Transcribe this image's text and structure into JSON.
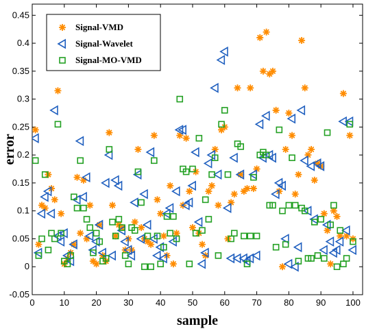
{
  "chart_data": {
    "type": "scatter",
    "xlabel": "sample",
    "ylabel": "error",
    "xlim": [
      0,
      103
    ],
    "ylim": [
      -0.05,
      0.47
    ],
    "xticks": [
      0,
      10,
      20,
      30,
      40,
      50,
      60,
      70,
      80,
      90,
      100
    ],
    "yticks": [
      -0.05,
      0,
      0.05,
      0.1,
      0.15,
      0.2,
      0.25,
      0.3,
      0.35,
      0.4,
      0.45
    ],
    "ytick_labels": [
      "-0.05",
      "0",
      "0.05",
      "0.1",
      "0.15",
      "0.2",
      "0.25",
      "0.3",
      "0.35",
      "0.4",
      "0.45"
    ],
    "grid": false,
    "legend_position": "top-left",
    "series": [
      {
        "name": "Signal-VMD",
        "marker": "star",
        "color": "#ff8c00",
        "points": [
          [
            1,
            0.245
          ],
          [
            2,
            0.04
          ],
          [
            3,
            0.11
          ],
          [
            4,
            0.105
          ],
          [
            5,
            0.165
          ],
          [
            6,
            0.14
          ],
          [
            7,
            0.12
          ],
          [
            8,
            0.315
          ],
          [
            9,
            0.095
          ],
          [
            10,
            0.005
          ],
          [
            11,
            0.015
          ],
          [
            12,
            0.025
          ],
          [
            13,
            0.04
          ],
          [
            14,
            0.16
          ],
          [
            15,
            0.06
          ],
          [
            16,
            0.155
          ],
          [
            17,
            0.05
          ],
          [
            18,
            0.11
          ],
          [
            19,
            0.01
          ],
          [
            20,
            0.005
          ],
          [
            21,
            0.075
          ],
          [
            22,
            0.02
          ],
          [
            23,
            0.01
          ],
          [
            24,
            0.24
          ],
          [
            25,
            0.11
          ],
          [
            26,
            0.055
          ],
          [
            27,
            0.075
          ],
          [
            28,
            0.07
          ],
          [
            29,
            0.03
          ],
          [
            30,
            0.05
          ],
          [
            31,
            0.03
          ],
          [
            32,
            0.08
          ],
          [
            33,
            0.21
          ],
          [
            34,
            0.07
          ],
          [
            35,
            0.05
          ],
          [
            36,
            0.045
          ],
          [
            37,
            0.04
          ],
          [
            38,
            0.235
          ],
          [
            39,
            0.12
          ],
          [
            40,
            0.095
          ],
          [
            41,
            0.055
          ],
          [
            42,
            0.02
          ],
          [
            43,
            0.145
          ],
          [
            44,
            0.005
          ],
          [
            45,
            0.06
          ],
          [
            46,
            0.235
          ],
          [
            47,
            0.11
          ],
          [
            48,
            0.23
          ],
          [
            49,
            0.135
          ],
          [
            50,
            0.07
          ],
          [
            51,
            0.17
          ],
          [
            52,
            0.06
          ],
          [
            53,
            0.04
          ],
          [
            54,
            0.02
          ],
          [
            55,
            0.135
          ],
          [
            56,
            0.145
          ],
          [
            57,
            0.21
          ],
          [
            58,
            0.11
          ],
          [
            59,
            0.245
          ],
          [
            60,
            0.25
          ],
          [
            61,
            0.05
          ],
          [
            62,
            0.115
          ],
          [
            63,
            0.13
          ],
          [
            64,
            0.32
          ],
          [
            65,
            0.165
          ],
          [
            66,
            0.135
          ],
          [
            67,
            0.14
          ],
          [
            68,
            0.32
          ],
          [
            69,
            0.14
          ],
          [
            70,
            0.175
          ],
          [
            71,
            0.41
          ],
          [
            72,
            0.35
          ],
          [
            73,
            0.42
          ],
          [
            74,
            0.345
          ],
          [
            75,
            0.35
          ],
          [
            76,
            0.28
          ],
          [
            77,
            0.135
          ],
          [
            78,
            0.0
          ],
          [
            79,
            0.21
          ],
          [
            80,
            0.275
          ],
          [
            81,
            0.235
          ],
          [
            82,
            0.13
          ],
          [
            83,
            0.165
          ],
          [
            84,
            0.405
          ],
          [
            85,
            0.32
          ],
          [
            86,
            0.2
          ],
          [
            87,
            0.21
          ],
          [
            88,
            0.155
          ],
          [
            89,
            0.185
          ],
          [
            90,
            0.18
          ],
          [
            91,
            0.095
          ],
          [
            92,
            0.065
          ],
          [
            93,
            0.005
          ],
          [
            94,
            0.1
          ],
          [
            95,
            0.09
          ],
          [
            96,
            0.055
          ],
          [
            97,
            0.31
          ],
          [
            98,
            0.055
          ],
          [
            99,
            0.235
          ],
          [
            100,
            0.05
          ]
        ]
      },
      {
        "name": "Signal-Wavelet",
        "marker": "triangle-left",
        "color": "#1f5fbf",
        "points": [
          [
            1,
            0.23
          ],
          [
            2,
            0.025
          ],
          [
            3,
            0.095
          ],
          [
            4,
            0.125
          ],
          [
            5,
            0.135
          ],
          [
            6,
            0.095
          ],
          [
            7,
            0.28
          ],
          [
            8,
            0.055
          ],
          [
            9,
            0.045
          ],
          [
            10,
            0.06
          ],
          [
            11,
            0.02
          ],
          [
            12,
            0.01
          ],
          [
            13,
            0.04
          ],
          [
            14,
            0.12
          ],
          [
            15,
            0.225
          ],
          [
            16,
            0.125
          ],
          [
            17,
            0.16
          ],
          [
            18,
            0.055
          ],
          [
            19,
            0.03
          ],
          [
            20,
            0.045
          ],
          [
            21,
            0.075
          ],
          [
            22,
            0.025
          ],
          [
            23,
            0.15
          ],
          [
            24,
            0.2
          ],
          [
            25,
            0.02
          ],
          [
            26,
            0.155
          ],
          [
            27,
            0.145
          ],
          [
            28,
            0.065
          ],
          [
            29,
            0.045
          ],
          [
            30,
            0.03
          ],
          [
            31,
            0.02
          ],
          [
            32,
            0.115
          ],
          [
            33,
            0.165
          ],
          [
            34,
            0.05
          ],
          [
            35,
            0.13
          ],
          [
            36,
            0.075
          ],
          [
            37,
            0.205
          ],
          [
            38,
            0.05
          ],
          [
            39,
            0.02
          ],
          [
            40,
            0.035
          ],
          [
            41,
            0.015
          ],
          [
            42,
            0.095
          ],
          [
            43,
            0.105
          ],
          [
            44,
            0.045
          ],
          [
            45,
            0.135
          ],
          [
            46,
            0.245
          ],
          [
            47,
            0.245
          ],
          [
            48,
            0.11
          ],
          [
            49,
            0.115
          ],
          [
            50,
            0.145
          ],
          [
            51,
            0.205
          ],
          [
            52,
            0.08
          ],
          [
            53,
            0.005
          ],
          [
            54,
            0.025
          ],
          [
            55,
            0.185
          ],
          [
            56,
            0.2
          ],
          [
            57,
            0.32
          ],
          [
            58,
            0.165
          ],
          [
            59,
            0.37
          ],
          [
            60,
            0.385
          ],
          [
            61,
            0.105
          ],
          [
            62,
            0.015
          ],
          [
            63,
            0.195
          ],
          [
            64,
            0.015
          ],
          [
            65,
            0.165
          ],
          [
            66,
            0.015
          ],
          [
            67,
            0.01
          ],
          [
            68,
            0.015
          ],
          [
            69,
            0.165
          ],
          [
            70,
            0.02
          ],
          [
            71,
            0.255
          ],
          [
            72,
            0.195
          ],
          [
            73,
            0.27
          ],
          [
            74,
            0.2
          ],
          [
            75,
            0.195
          ],
          [
            76,
            0.13
          ],
          [
            77,
            0.15
          ],
          [
            78,
            0.145
          ],
          [
            79,
            0.05
          ],
          [
            80,
            0.005
          ],
          [
            81,
            0.265
          ],
          [
            82,
            0.0
          ],
          [
            83,
            0.035
          ],
          [
            84,
            0.28
          ],
          [
            85,
            0.19
          ],
          [
            86,
            0.1
          ],
          [
            87,
            0.18
          ],
          [
            88,
            0.085
          ],
          [
            89,
            0.185
          ],
          [
            90,
            0.18
          ],
          [
            91,
            0.03
          ],
          [
            92,
            0.075
          ],
          [
            93,
            0.045
          ],
          [
            94,
            0.025
          ],
          [
            95,
            0.03
          ],
          [
            96,
            0.045
          ],
          [
            97,
            0.26
          ],
          [
            98,
            0.065
          ],
          [
            99,
            0.26
          ],
          [
            100,
            0.03
          ]
        ]
      },
      {
        "name": "Signal-MO-VMD",
        "marker": "square",
        "color": "#22a022",
        "points": [
          [
            1,
            0.19
          ],
          [
            2,
            0.02
          ],
          [
            3,
            0.05
          ],
          [
            4,
            0.165
          ],
          [
            5,
            0.03
          ],
          [
            6,
            0.06
          ],
          [
            7,
            0.05
          ],
          [
            8,
            0.255
          ],
          [
            9,
            0.06
          ],
          [
            10,
            0.01
          ],
          [
            11,
            0.005
          ],
          [
            12,
            0.02
          ],
          [
            13,
            0.125
          ],
          [
            14,
            0.105
          ],
          [
            15,
            0.19
          ],
          [
            16,
            0.105
          ],
          [
            17,
            0.085
          ],
          [
            18,
            0.07
          ],
          [
            19,
            0.025
          ],
          [
            20,
            0.06
          ],
          [
            21,
            0.045
          ],
          [
            22,
            0.01
          ],
          [
            23,
            0.015
          ],
          [
            24,
            0.21
          ],
          [
            25,
            0.08
          ],
          [
            26,
            0.055
          ],
          [
            27,
            0.085
          ],
          [
            28,
            0.07
          ],
          [
            29,
            0.02
          ],
          [
            30,
            0.005
          ],
          [
            31,
            0.07
          ],
          [
            32,
            0.065
          ],
          [
            33,
            0.17
          ],
          [
            34,
            0.115
          ],
          [
            35,
            0.0
          ],
          [
            36,
            0.055
          ],
          [
            37,
            0.0
          ],
          [
            38,
            0.19
          ],
          [
            39,
            0.055
          ],
          [
            40,
            0.005
          ],
          [
            41,
            0.035
          ],
          [
            42,
            0.09
          ],
          [
            43,
            0.06
          ],
          [
            44,
            0.09
          ],
          [
            45,
            0.05
          ],
          [
            46,
            0.3
          ],
          [
            47,
            0.175
          ],
          [
            48,
            0.17
          ],
          [
            49,
            0.005
          ],
          [
            50,
            0.175
          ],
          [
            51,
            0.06
          ],
          [
            52,
            0.23
          ],
          [
            53,
            0.065
          ],
          [
            54,
            0.12
          ],
          [
            55,
            0.085
          ],
          [
            56,
            0.165
          ],
          [
            57,
            0.195
          ],
          [
            58,
            0.02
          ],
          [
            59,
            0.255
          ],
          [
            60,
            0.28
          ],
          [
            61,
            0.165
          ],
          [
            62,
            0.05
          ],
          [
            63,
            0.06
          ],
          [
            64,
            0.22
          ],
          [
            65,
            0.215
          ],
          [
            66,
            0.055
          ],
          [
            67,
            0.005
          ],
          [
            68,
            0.055
          ],
          [
            69,
            0.16
          ],
          [
            70,
            0.055
          ],
          [
            71,
            0.2
          ],
          [
            72,
            0.205
          ],
          [
            73,
            0.2
          ],
          [
            74,
            0.11
          ],
          [
            75,
            0.11
          ],
          [
            76,
            0.035
          ],
          [
            77,
            0.245
          ],
          [
            78,
            0.1
          ],
          [
            79,
            0.04
          ],
          [
            80,
            0.11
          ],
          [
            81,
            0.195
          ],
          [
            82,
            0.11
          ],
          [
            83,
            0.01
          ],
          [
            84,
            0.105
          ],
          [
            85,
            0.1
          ],
          [
            86,
            0.015
          ],
          [
            87,
            0.015
          ],
          [
            88,
            0.08
          ],
          [
            89,
            0.02
          ],
          [
            90,
            0.085
          ],
          [
            91,
            0.015
          ],
          [
            92,
            0.24
          ],
          [
            93,
            0.075
          ],
          [
            94,
            0.11
          ],
          [
            95,
            0.0
          ],
          [
            96,
            0.065
          ],
          [
            97,
            0.005
          ],
          [
            98,
            0.015
          ],
          [
            99,
            0.255
          ],
          [
            100,
            0.045
          ]
        ]
      }
    ]
  }
}
